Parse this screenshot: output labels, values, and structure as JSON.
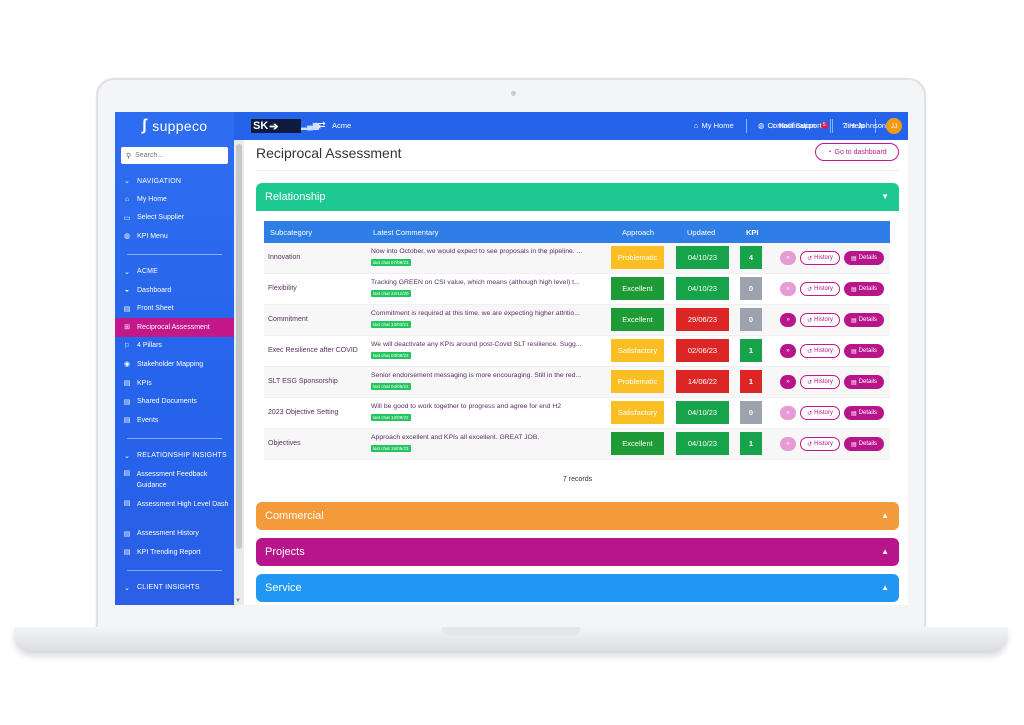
{
  "sidebar": {
    "logo": "suppeco",
    "search_placeholder": "Search...",
    "sections": [
      {
        "title": "NAVIGATION",
        "items": [
          {
            "label": "My Home",
            "icon": "home-icon",
            "glyph": "⌂"
          },
          {
            "label": "Select Supplier",
            "icon": "folder-icon",
            "glyph": "▭"
          },
          {
            "label": "KPI Menu",
            "icon": "globe-icon",
            "glyph": "◍"
          }
        ]
      },
      {
        "title": "ACME",
        "items": [
          {
            "label": "Dashboard",
            "icon": "dashboard-icon",
            "glyph": "◒"
          },
          {
            "label": "Front Sheet",
            "icon": "file-icon",
            "glyph": "▤"
          },
          {
            "label": "Reciprocal Assessment",
            "icon": "gift-icon",
            "glyph": "⊞",
            "active": true
          },
          {
            "label": "4 Pillars",
            "icon": "flag-icon",
            "glyph": "⚐"
          },
          {
            "label": "Stakeholder Mapping",
            "icon": "eye-icon",
            "glyph": "◉"
          },
          {
            "label": "KPIs",
            "icon": "file-icon",
            "glyph": "▤"
          },
          {
            "label": "Shared Documents",
            "icon": "file-icon",
            "glyph": "▤"
          },
          {
            "label": "Events",
            "icon": "file-icon",
            "glyph": "▤"
          }
        ]
      },
      {
        "title": "RELATIONSHIP INSIGHTS",
        "items": [
          {
            "label": "Assessment Feedback Guidance",
            "icon": "file-icon",
            "glyph": "▤",
            "two_line": true
          },
          {
            "label": "Assessment High Level Dash",
            "icon": "file-icon",
            "glyph": "▤",
            "two_line": true
          },
          {
            "label": "Assessment History",
            "icon": "file-icon",
            "glyph": "▤"
          },
          {
            "label": "KPI Trending Report",
            "icon": "file-icon",
            "glyph": "▤"
          }
        ]
      },
      {
        "title": "CLIENT INSIGHTS",
        "items": []
      }
    ]
  },
  "topbar": {
    "brand": "SK",
    "client": "Acme",
    "links": [
      {
        "label": "My Home",
        "icon": "home-icon",
        "glyph": "⌂"
      },
      {
        "label": "Contact Support",
        "icon": "globe-icon",
        "glyph": "◍"
      },
      {
        "label": "Help",
        "icon": "help-icon",
        "glyph": "?"
      },
      {
        "label": "Notification",
        "icon": "bell-icon",
        "glyph": "♫"
      }
    ],
    "notification_count": "5",
    "user_name": "Jim Johnson",
    "user_initials": "JJ"
  },
  "page": {
    "title": "Reciprocal Assessment",
    "dashboard_button": "Go to dashboard"
  },
  "panels": {
    "relationship": "Relationship",
    "commercial": "Commercial",
    "projects": "Projects",
    "service": "Service"
  },
  "table": {
    "headers": [
      "Subcategory",
      "Latest Commentary",
      "Approach",
      "Updated",
      "KPI"
    ],
    "history_label": "History",
    "details_label": "Details",
    "records": "7 records",
    "rows": [
      {
        "sub": "Innovation",
        "comment": "Now into October, we would expect to see proposals in the pipeline. ...",
        "tag": "last chat 07/09/23",
        "approach": "Problematic",
        "approach_color": "#fbbf24",
        "updated": "04/10/23",
        "updated_color": "#16a34a",
        "kpi": "4",
        "kpi_color": "#16a34a",
        "ff_dark": false
      },
      {
        "sub": "Flexibility",
        "comment": "Tracking GREEN on CSI value, which means (although high level) t...",
        "tag": "last chat 22/12/20",
        "approach": "Excellent",
        "approach_color": "#1e9b36",
        "updated": "04/10/23",
        "updated_color": "#16a34a",
        "kpi": "0",
        "kpi_color": "#9ca3af",
        "ff_dark": false
      },
      {
        "sub": "Commitment",
        "comment": "Commitment is required at this time. we are expecting higher attritio...",
        "tag": "last chat 13/03/21",
        "approach": "Excellent",
        "approach_color": "#1e9b36",
        "updated": "29/06/23",
        "updated_color": "#dc2626",
        "kpi": "0",
        "kpi_color": "#9ca3af",
        "ff_dark": true
      },
      {
        "sub": "Exec Resilience after COVID",
        "comment": "We will deactivate any KPIs around post-Covid SLT resilience. Sugg...",
        "tag": "last chat 03/08/23",
        "approach": "Satisfactory",
        "approach_color": "#fbbf24",
        "updated": "02/06/23",
        "updated_color": "#dc2626",
        "kpi": "1",
        "kpi_color": "#16a34a",
        "ff_dark": true
      },
      {
        "sub": "SLT ESG Sponsorship",
        "comment": "Senior endorsement messaging is more encouraging. Still in the red...",
        "tag": "last chat 04/05/22",
        "approach": "Problematic",
        "approach_color": "#fbbf24",
        "updated": "14/06/22",
        "updated_color": "#dc2626",
        "kpi": "1",
        "kpi_color": "#dc2626",
        "ff_dark": true
      },
      {
        "sub": "2023 Objective Setting",
        "comment": "Will be good to work together to progress and agree for end H2",
        "tag": "last chat 12/09/22",
        "approach": "Satisfactory",
        "approach_color": "#fbbf24",
        "updated": "04/10/23",
        "updated_color": "#16a34a",
        "kpi": "0",
        "kpi_color": "#9ca3af",
        "ff_dark": false
      },
      {
        "sub": "Objectives",
        "comment": "Approach excellent and KPIs all excellent. GREAT JOB.",
        "tag": "last chat 16/06/23",
        "approach": "Excellent",
        "approach_color": "#1e9b36",
        "updated": "04/10/23",
        "updated_color": "#16a34a",
        "kpi": "1",
        "kpi_color": "#16a34a",
        "ff_dark": false
      }
    ]
  }
}
